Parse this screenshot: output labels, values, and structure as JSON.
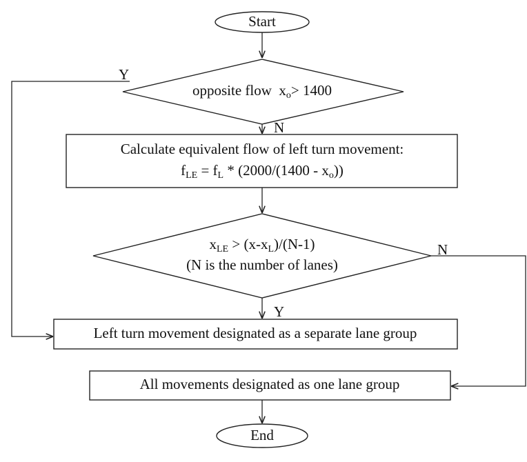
{
  "nodes": [
    {
      "label": "Start"
    },
    {
      "lines": [
        [
          {
            "text": "opposite flow  x"
          },
          {
            "sub": "o"
          },
          {
            "text": "> 1400"
          }
        ]
      ]
    },
    {
      "lines": [
        [
          {
            "text": "Calculate equivalent flow of left turn movement:"
          }
        ],
        [
          {
            "text": "f"
          },
          {
            "sub": "LE"
          },
          {
            "text": " = f"
          },
          {
            "sub": "L"
          },
          {
            "text": " * (2000/(1400 - x"
          },
          {
            "sub": "o"
          },
          {
            "text": "))"
          }
        ]
      ]
    },
    {
      "lines": [
        [
          {
            "text": "x"
          },
          {
            "sub": "LE"
          },
          {
            "text": " > (x-x"
          },
          {
            "sub": "L"
          },
          {
            "text": ")/(N-1)"
          }
        ],
        [
          {
            "text": "(N is the number of lanes)"
          }
        ]
      ]
    },
    {
      "label": "Left turn movement designated as a separate lane group"
    },
    {
      "label": "All movements designated as one lane group"
    },
    {
      "label": "End"
    }
  ],
  "edges": [
    {
      "label": "Y"
    },
    {
      "label": "N"
    },
    {
      "label": "N"
    },
    {
      "label": "Y"
    }
  ]
}
